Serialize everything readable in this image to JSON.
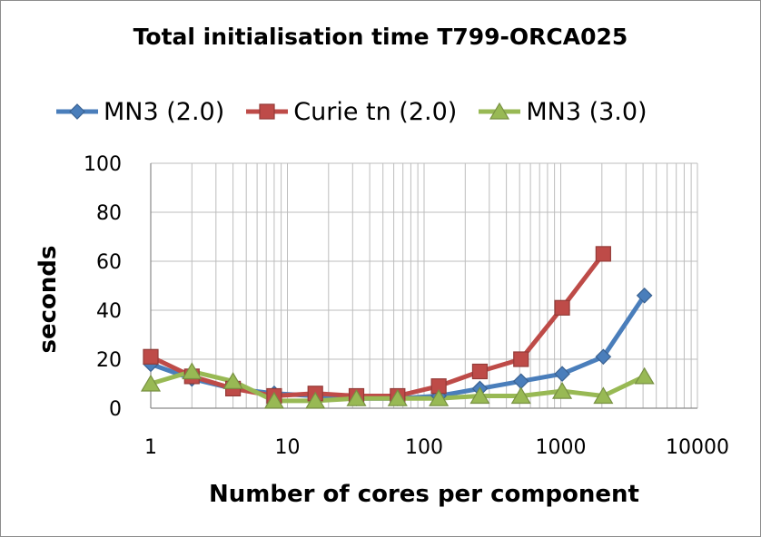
{
  "chart_data": {
    "type": "line",
    "title": "Total initialisation time T799-ORCA025",
    "xlabel": "Number of cores per component",
    "ylabel": "seconds",
    "xscale": "log",
    "xlim": [
      1,
      10000
    ],
    "ylim": [
      0,
      100
    ],
    "x_ticks": [
      "1",
      "10",
      "100",
      "1000",
      "10000"
    ],
    "y_ticks": [
      "0",
      "20",
      "40",
      "60",
      "80",
      "100"
    ],
    "grid": true,
    "legend_position": "top",
    "series": [
      {
        "name": "MN3 (2.0)",
        "color": "#4a7ebb",
        "marker": "diamond",
        "x": [
          1,
          2,
          4,
          8,
          16,
          32,
          64,
          128,
          256,
          512,
          1024,
          2048,
          4096
        ],
        "y": [
          18,
          12,
          8,
          6,
          5,
          4,
          4,
          5,
          8,
          11,
          14,
          21,
          46
        ]
      },
      {
        "name": "Curie tn (2.0)",
        "color": "#be4b48",
        "marker": "square",
        "x": [
          1,
          2,
          4,
          8,
          16,
          32,
          64,
          128,
          256,
          512,
          1024,
          2048
        ],
        "y": [
          21,
          13,
          8,
          5,
          6,
          5,
          5,
          9,
          15,
          20,
          41,
          63
        ]
      },
      {
        "name": "MN3 (3.0)",
        "color": "#98b954",
        "marker": "triangle",
        "x": [
          1,
          2,
          4,
          8,
          16,
          32,
          64,
          128,
          256,
          512,
          1024,
          2048,
          4096
        ],
        "y": [
          10,
          15,
          11,
          3,
          3,
          4,
          4,
          4,
          5,
          5,
          7,
          5,
          13
        ]
      }
    ]
  }
}
